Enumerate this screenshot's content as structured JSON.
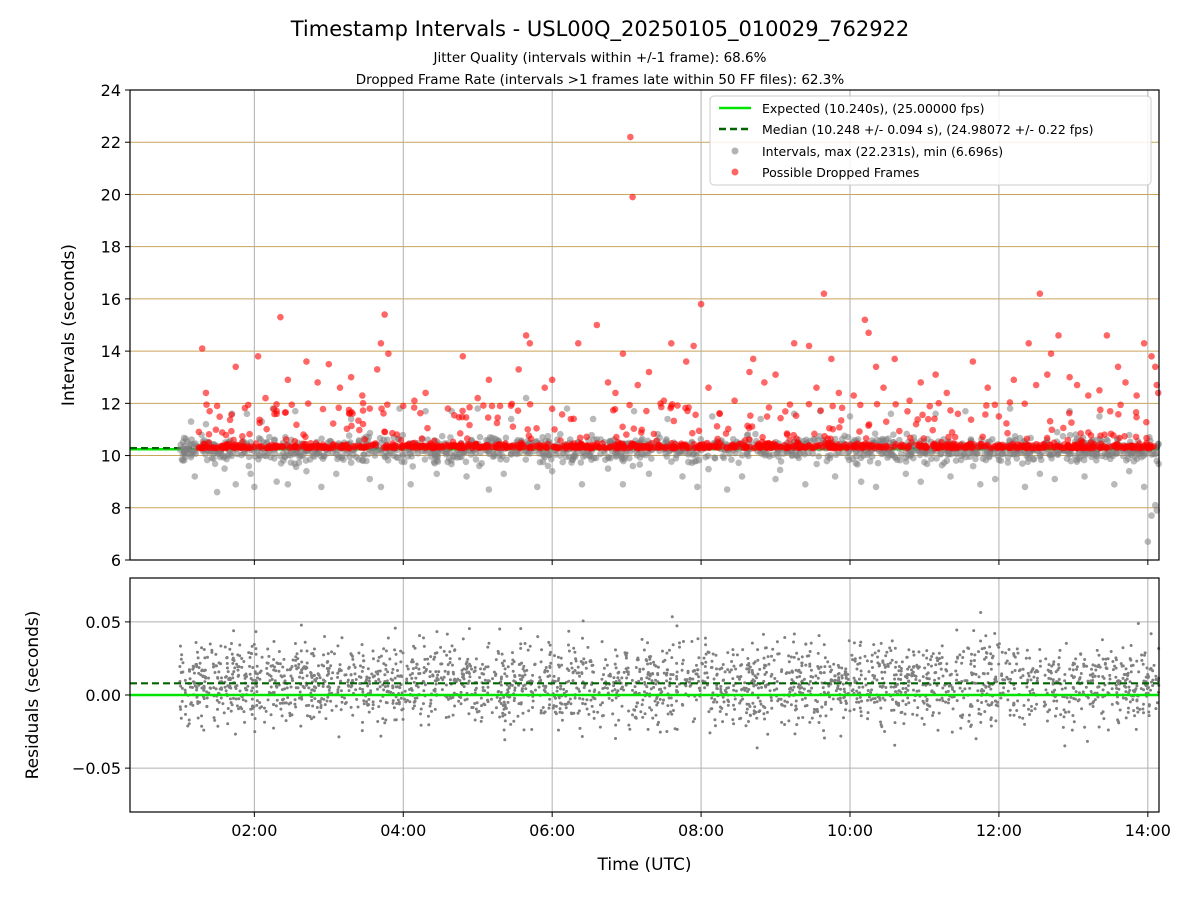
{
  "title": "Timestamp Intervals - USL00Q_20250105_010029_762922",
  "subtitle_lines": [
    "Jitter Quality (intervals within +/-1 frame): 68.6%",
    "Dropped Frame Rate (intervals >1 frames late within 50 FF files): 62.3%"
  ],
  "chart_data": [
    {
      "type": "scatter",
      "ylabel": "Intervals (seconds)",
      "ylim": [
        6,
        24
      ],
      "xlim_hours": [
        0.33,
        14.15
      ],
      "yticks": [
        6,
        8,
        10,
        12,
        14,
        16,
        18,
        20,
        22,
        24
      ],
      "ytick_labels": [
        "6",
        "8",
        "10",
        "12",
        "14",
        "16",
        "18",
        "20",
        "22",
        "24"
      ],
      "grid": true,
      "legend": "top-right",
      "colors": {
        "expected": "#00e400",
        "median": "#006400",
        "intervals": "#808080",
        "dropped": "#ff0000",
        "grid_y": "#c9a55a",
        "grid_x": "#b0b0b0"
      },
      "expected_value": 10.24,
      "median_value": 10.248,
      "series": [
        {
          "name": "Expected (10.240s), (25.00000 fps)",
          "kind": "hline",
          "value": 10.24
        },
        {
          "name": "Median (10.248 +/- 0.094 s), (24.98072 +/- 0.22 fps)",
          "kind": "hline",
          "value": 10.248
        },
        {
          "name": "Intervals, max (22.231s), min (6.696s)",
          "kind": "scatter",
          "points": [
            [
              1.15,
              11.3
            ],
            [
              1.2,
              9.2
            ],
            [
              1.35,
              11.2
            ],
            [
              1.5,
              8.6
            ],
            [
              1.6,
              9.5
            ],
            [
              1.7,
              11.6
            ],
            [
              1.75,
              8.9
            ],
            [
              1.9,
              11.6
            ],
            [
              1.95,
              9.3
            ],
            [
              2.0,
              8.8
            ],
            [
              2.1,
              11.3
            ],
            [
              2.25,
              11.8
            ],
            [
              2.3,
              9.0
            ],
            [
              2.45,
              8.9
            ],
            [
              2.55,
              11.7
            ],
            [
              2.7,
              9.4
            ],
            [
              2.9,
              8.8
            ],
            [
              3.1,
              9.3
            ],
            [
              3.3,
              11.4
            ],
            [
              3.55,
              9.1
            ],
            [
              3.7,
              8.8
            ],
            [
              3.95,
              11.8
            ],
            [
              4.1,
              8.9
            ],
            [
              4.3,
              11.7
            ],
            [
              4.45,
              9.3
            ],
            [
              4.65,
              11.7
            ],
            [
              4.85,
              9.2
            ],
            [
              5.0,
              11.8
            ],
            [
              5.15,
              8.7
            ],
            [
              5.35,
              9.3
            ],
            [
              5.45,
              11.4
            ],
            [
              5.65,
              12.2
            ],
            [
              5.8,
              8.8
            ],
            [
              6.0,
              9.4
            ],
            [
              6.2,
              11.8
            ],
            [
              6.4,
              8.9
            ],
            [
              6.55,
              11.4
            ],
            [
              6.75,
              9.5
            ],
            [
              6.95,
              8.9
            ],
            [
              7.1,
              11.7
            ],
            [
              7.3,
              9.3
            ],
            [
              7.55,
              11.4
            ],
            [
              7.75,
              9.2
            ],
            [
              7.95,
              8.8
            ],
            [
              8.15,
              11.5
            ],
            [
              8.35,
              8.7
            ],
            [
              8.55,
              9.2
            ],
            [
              8.8,
              11.4
            ],
            [
              9.0,
              9.1
            ],
            [
              9.25,
              11.6
            ],
            [
              9.4,
              8.9
            ],
            [
              9.6,
              11.7
            ],
            [
              9.8,
              9.2
            ],
            [
              10.0,
              11.5
            ],
            [
              10.15,
              9.0
            ],
            [
              10.35,
              8.8
            ],
            [
              10.55,
              11.6
            ],
            [
              10.75,
              9.3
            ],
            [
              10.95,
              9.0
            ],
            [
              11.15,
              11.6
            ],
            [
              11.35,
              9.2
            ],
            [
              11.55,
              11.7
            ],
            [
              11.75,
              8.9
            ],
            [
              11.95,
              9.1
            ],
            [
              12.15,
              11.8
            ],
            [
              12.35,
              8.8
            ],
            [
              12.55,
              9.3
            ],
            [
              12.75,
              9.1
            ],
            [
              12.95,
              11.7
            ],
            [
              13.15,
              9.2
            ],
            [
              13.35,
              11.5
            ],
            [
              13.55,
              8.9
            ],
            [
              13.75,
              9.4
            ],
            [
              13.95,
              8.8
            ],
            [
              14.0,
              6.7
            ],
            [
              14.05,
              7.7
            ],
            [
              14.1,
              8.1
            ],
            [
              14.12,
              7.9
            ]
          ]
        },
        {
          "name": "Possible Dropped Frames",
          "kind": "scatter",
          "points": [
            [
              1.3,
              14.1
            ],
            [
              1.35,
              12.4
            ],
            [
              1.4,
              11.7
            ],
            [
              1.5,
              11.9
            ],
            [
              1.75,
              13.4
            ],
            [
              2.05,
              13.8
            ],
            [
              2.15,
              12.2
            ],
            [
              2.3,
              11.6
            ],
            [
              2.35,
              15.3
            ],
            [
              2.45,
              12.9
            ],
            [
              2.7,
              13.6
            ],
            [
              2.85,
              12.8
            ],
            [
              3.0,
              13.5
            ],
            [
              3.15,
              12.6
            ],
            [
              3.3,
              13.0
            ],
            [
              3.45,
              12.3
            ],
            [
              3.55,
              11.8
            ],
            [
              3.65,
              13.3
            ],
            [
              3.7,
              14.3
            ],
            [
              3.75,
              15.4
            ],
            [
              3.8,
              13.9
            ],
            [
              4.0,
              11.9
            ],
            [
              4.15,
              12.1
            ],
            [
              4.3,
              12.4
            ],
            [
              4.6,
              11.8
            ],
            [
              4.8,
              13.8
            ],
            [
              5.0,
              12.2
            ],
            [
              5.15,
              12.9
            ],
            [
              5.3,
              11.9
            ],
            [
              5.55,
              13.3
            ],
            [
              5.65,
              14.6
            ],
            [
              5.7,
              14.3
            ],
            [
              5.9,
              12.6
            ],
            [
              6.0,
              12.9
            ],
            [
              6.25,
              11.4
            ],
            [
              6.35,
              14.3
            ],
            [
              6.6,
              15.0
            ],
            [
              6.75,
              12.8
            ],
            [
              6.85,
              12.4
            ],
            [
              6.95,
              13.9
            ],
            [
              7.05,
              22.2
            ],
            [
              7.08,
              19.9
            ],
            [
              7.15,
              12.7
            ],
            [
              7.3,
              13.2
            ],
            [
              7.5,
              12.1
            ],
            [
              7.6,
              14.3
            ],
            [
              7.8,
              13.6
            ],
            [
              7.9,
              14.2
            ],
            [
              8.0,
              15.8
            ],
            [
              8.1,
              12.6
            ],
            [
              8.25,
              11.6
            ],
            [
              8.45,
              12.1
            ],
            [
              8.65,
              13.2
            ],
            [
              8.7,
              13.7
            ],
            [
              8.85,
              12.8
            ],
            [
              9.0,
              13.1
            ],
            [
              9.25,
              14.3
            ],
            [
              9.45,
              14.2
            ],
            [
              9.55,
              12.6
            ],
            [
              9.65,
              16.2
            ],
            [
              9.75,
              13.7
            ],
            [
              9.85,
              12.4
            ],
            [
              10.05,
              12.3
            ],
            [
              10.2,
              15.2
            ],
            [
              10.25,
              14.7
            ],
            [
              10.35,
              13.4
            ],
            [
              10.45,
              12.6
            ],
            [
              10.6,
              13.7
            ],
            [
              10.8,
              12.1
            ],
            [
              10.95,
              12.8
            ],
            [
              11.15,
              13.1
            ],
            [
              11.3,
              12.4
            ],
            [
              11.45,
              11.6
            ],
            [
              11.65,
              13.6
            ],
            [
              11.85,
              12.6
            ],
            [
              12.0,
              11.5
            ],
            [
              12.2,
              12.9
            ],
            [
              12.4,
              14.3
            ],
            [
              12.5,
              12.7
            ],
            [
              12.55,
              16.2
            ],
            [
              12.65,
              13.1
            ],
            [
              12.7,
              13.9
            ],
            [
              12.8,
              14.6
            ],
            [
              12.95,
              13.0
            ],
            [
              13.05,
              12.7
            ],
            [
              13.2,
              12.3
            ],
            [
              13.35,
              12.5
            ],
            [
              13.45,
              14.6
            ],
            [
              13.6,
              13.4
            ],
            [
              13.7,
              12.8
            ],
            [
              13.85,
              12.3
            ],
            [
              13.95,
              14.3
            ],
            [
              14.05,
              13.8
            ],
            [
              14.1,
              13.4
            ],
            [
              14.12,
              12.7
            ],
            [
              14.14,
              12.4
            ]
          ]
        }
      ]
    },
    {
      "type": "scatter",
      "ylabel": "Residuals (seconds)",
      "xlabel": "Time (UTC)",
      "ylim": [
        -0.08,
        0.08
      ],
      "xlim_hours": [
        0.33,
        14.15
      ],
      "yticks": [
        -0.05,
        0.0,
        0.05
      ],
      "ytick_labels": [
        "−0.05",
        "0.00",
        "0.05"
      ],
      "xticks_hours": [
        2,
        4,
        6,
        8,
        10,
        12,
        14
      ],
      "xtick_labels": [
        "02:00",
        "04:00",
        "06:00",
        "08:00",
        "10:00",
        "12:00",
        "14:00"
      ],
      "grid": true,
      "median_residual": 0.008,
      "expected_residual": 0.0,
      "residual_x_range_hours": [
        1.0,
        14.15
      ],
      "residual_spread": 0.02,
      "point_color": "#808080"
    }
  ]
}
